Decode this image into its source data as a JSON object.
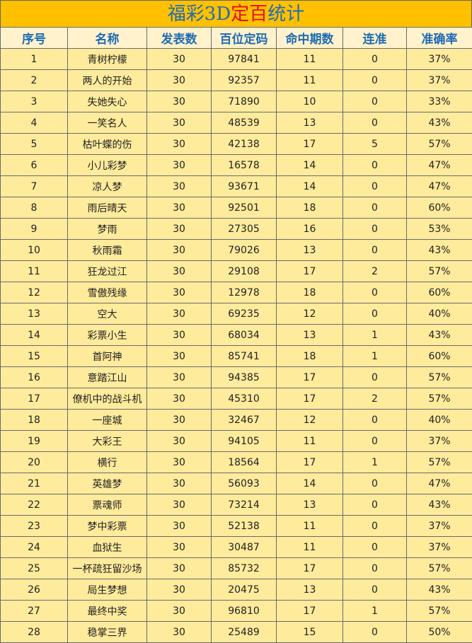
{
  "title_parts": [
    "福彩3D",
    "定百",
    "统计"
  ],
  "table": {
    "header": [
      "序号",
      "名称",
      "发表数",
      "百位定码",
      "命中期数",
      "连准",
      "准确率"
    ],
    "rows": [
      [
        "1",
        "青树柠檬",
        "30",
        "97841",
        "11",
        "0",
        "37%"
      ],
      [
        "2",
        "两人的开始",
        "30",
        "92357",
        "11",
        "0",
        "37%"
      ],
      [
        "3",
        "失她失心",
        "30",
        "71890",
        "10",
        "0",
        "33%"
      ],
      [
        "4",
        "一笑名人",
        "30",
        "48539",
        "13",
        "0",
        "43%"
      ],
      [
        "5",
        "枯叶蝶的伤",
        "30",
        "42138",
        "17",
        "5",
        "57%"
      ],
      [
        "6",
        "小儿彩梦",
        "30",
        "16578",
        "14",
        "0",
        "47%"
      ],
      [
        "7",
        "凉人梦",
        "30",
        "93671",
        "14",
        "0",
        "47%"
      ],
      [
        "8",
        "雨后晴天",
        "30",
        "92501",
        "18",
        "0",
        "60%"
      ],
      [
        "9",
        "梦雨",
        "30",
        "27305",
        "16",
        "0",
        "53%"
      ],
      [
        "10",
        "秋雨霜",
        "30",
        "79026",
        "13",
        "0",
        "43%"
      ],
      [
        "11",
        "狂龙过江",
        "30",
        "29108",
        "17",
        "2",
        "57%"
      ],
      [
        "12",
        "雪傲残缘",
        "30",
        "12978",
        "18",
        "0",
        "60%"
      ],
      [
        "13",
        "空大",
        "30",
        "69235",
        "12",
        "0",
        "40%"
      ],
      [
        "14",
        "彩票小生",
        "30",
        "68034",
        "13",
        "1",
        "43%"
      ],
      [
        "15",
        "首阿神",
        "30",
        "85741",
        "18",
        "1",
        "60%"
      ],
      [
        "16",
        "意踏江山",
        "30",
        "94385",
        "17",
        "0",
        "57%"
      ],
      [
        "17",
        "僚机中的战斗机",
        "30",
        "45310",
        "17",
        "2",
        "57%"
      ],
      [
        "18",
        "一座城",
        "30",
        "32467",
        "12",
        "0",
        "40%"
      ],
      [
        "19",
        "大彩王",
        "30",
        "94105",
        "11",
        "0",
        "37%"
      ],
      [
        "20",
        "横行",
        "30",
        "18564",
        "17",
        "1",
        "57%"
      ],
      [
        "21",
        "英雄梦",
        "30",
        "56093",
        "14",
        "0",
        "47%"
      ],
      [
        "22",
        "票魂师",
        "30",
        "73214",
        "13",
        "0",
        "43%"
      ],
      [
        "23",
        "梦中彩票",
        "30",
        "52138",
        "11",
        "0",
        "37%"
      ],
      [
        "24",
        "血狱生",
        "30",
        "30487",
        "11",
        "0",
        "37%"
      ],
      [
        "25",
        "一杯疏狂留沙场",
        "30",
        "85732",
        "17",
        "0",
        "57%"
      ],
      [
        "26",
        "局生梦想",
        "30",
        "20475",
        "13",
        "0",
        "43%"
      ],
      [
        "27",
        "最终中奖",
        "30",
        "96810",
        "17",
        "1",
        "57%"
      ],
      [
        "28",
        "稳掌三界",
        "30",
        "25489",
        "15",
        "0",
        "50%"
      ]
    ]
  }
}
